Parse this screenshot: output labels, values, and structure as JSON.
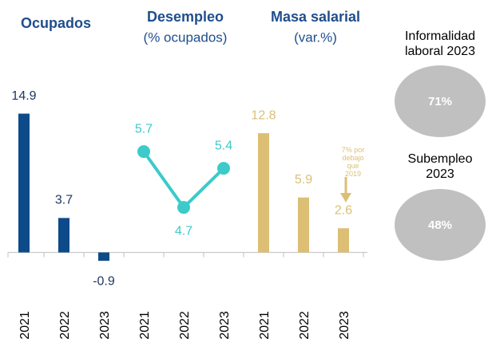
{
  "chart_data": {
    "type": "bar",
    "categories": [
      "2021",
      "2022",
      "2023",
      "2021",
      "2022",
      "2023",
      "2021",
      "2022",
      "2023"
    ],
    "series": [
      {
        "name": "Ocupados",
        "color": "#0d4a8a",
        "values": [
          14.9,
          3.7,
          -0.9,
          null,
          null,
          null,
          null,
          null,
          null
        ]
      },
      {
        "name": "Desempleo",
        "subtitle": "(% ocupados)",
        "color": "#3ccaca",
        "axis": "y2",
        "type": "line",
        "values": [
          null,
          null,
          null,
          5.7,
          4.7,
          5.4,
          null,
          null,
          null
        ]
      },
      {
        "name": "Masa salarial",
        "subtitle": "(var.%)",
        "color": "#dcbf74",
        "values": [
          null,
          null,
          null,
          null,
          null,
          null,
          12.8,
          5.9,
          2.6
        ]
      }
    ],
    "ylim": [
      -2,
      17
    ],
    "y2lim": [
      3.56,
      6.73
    ],
    "annotation": "7% por debajo que 2019",
    "indicators": [
      {
        "title": "Informalidad laboral 2023",
        "value": 71,
        "value_label": "71%"
      },
      {
        "title": "Subempleo 2023",
        "value": 48,
        "value_label": "48%"
      }
    ]
  }
}
